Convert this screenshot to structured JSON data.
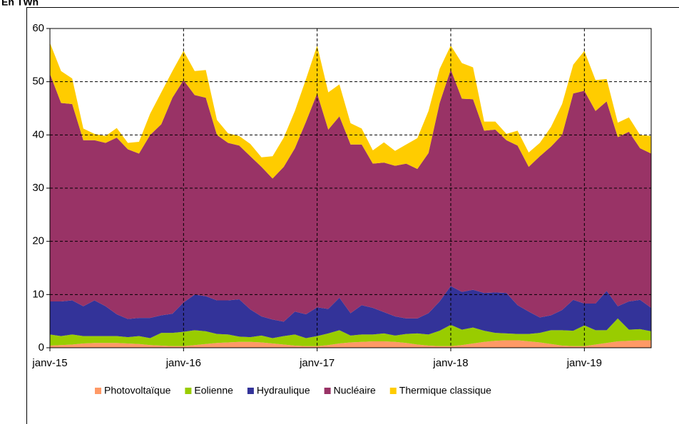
{
  "chart_data": {
    "type": "stacked-area",
    "title": "En TWh",
    "categories": [
      "janv-15",
      null,
      null,
      null,
      null,
      null,
      null,
      null,
      null,
      null,
      null,
      null,
      "janv-16",
      null,
      null,
      null,
      null,
      null,
      null,
      null,
      null,
      null,
      null,
      null,
      "janv-17",
      null,
      null,
      null,
      null,
      null,
      null,
      null,
      null,
      null,
      null,
      null,
      "janv-18",
      null,
      null,
      null,
      null,
      null,
      null,
      null,
      null,
      null,
      null,
      null,
      "janv-19",
      null,
      null,
      null,
      null,
      null,
      null
    ],
    "series": [
      {
        "name": "Photovoltaïque",
        "color": "#ff9966",
        "values": [
          0.4,
          0.5,
          0.6,
          0.8,
          0.9,
          0.9,
          0.9,
          0.8,
          0.7,
          0.5,
          0.4,
          0.3,
          0.3,
          0.5,
          0.7,
          0.9,
          1.0,
          1.1,
          1.1,
          1.0,
          0.8,
          0.6,
          0.4,
          0.3,
          0.3,
          0.5,
          0.8,
          1.0,
          1.1,
          1.2,
          1.2,
          1.1,
          0.9,
          0.6,
          0.4,
          0.3,
          0.3,
          0.5,
          0.8,
          1.1,
          1.3,
          1.4,
          1.4,
          1.2,
          1.0,
          0.7,
          0.4,
          0.3,
          0.3,
          0.6,
          0.9,
          1.2,
          1.3,
          1.4,
          1.4
        ]
      },
      {
        "name": "Eolienne",
        "color": "#99cc00",
        "values": [
          2.1,
          1.7,
          1.9,
          1.4,
          1.3,
          1.3,
          1.3,
          1.2,
          1.5,
          1.3,
          2.4,
          2.5,
          2.7,
          2.8,
          2.4,
          1.7,
          1.5,
          1.0,
          0.9,
          1.3,
          1.0,
          1.6,
          2.1,
          1.5,
          1.9,
          2.2,
          2.5,
          1.3,
          1.4,
          1.3,
          1.5,
          1.2,
          1.7,
          2.1,
          2.1,
          2.9,
          4.0,
          2.9,
          3.0,
          2.1,
          1.5,
          1.3,
          1.2,
          1.4,
          1.8,
          2.6,
          2.9,
          2.9,
          3.9,
          2.7,
          2.4,
          4.3,
          2.1,
          2.1,
          1.7
        ]
      },
      {
        "name": "Hydraulique",
        "color": "#333399",
        "values": [
          6.2,
          6.5,
          6.4,
          5.6,
          6.7,
          5.6,
          4.1,
          3.4,
          3.4,
          3.8,
          3.3,
          3.6,
          5.5,
          6.7,
          6.6,
          6.3,
          6.4,
          7.0,
          5.2,
          3.6,
          3.5,
          2.7,
          4.3,
          4.5,
          5.4,
          4.6,
          6.1,
          4.2,
          5.5,
          5.0,
          4.0,
          3.6,
          2.9,
          2.8,
          4.0,
          5.5,
          7.3,
          7.1,
          7.1,
          7.1,
          7.6,
          7.6,
          5.4,
          4.2,
          2.9,
          2.8,
          3.8,
          5.8,
          4.1,
          5.0,
          7.4,
          2.3,
          5.3,
          5.5,
          4.4
        ]
      },
      {
        "name": "Nucléaire",
        "color": "#993366",
        "values": [
          42.8,
          37.3,
          36.9,
          31.2,
          30.1,
          30.7,
          33.2,
          31.9,
          30.9,
          34.4,
          35.9,
          40.6,
          41.8,
          37.5,
          37.3,
          31.1,
          29.6,
          28.9,
          28.8,
          28.1,
          26.5,
          29.1,
          30.7,
          36.2,
          40.2,
          33.7,
          34.1,
          31.7,
          30.2,
          27.1,
          28.1,
          28.3,
          29.1,
          28.1,
          30.1,
          37.3,
          40.7,
          36.3,
          35.8,
          30.5,
          30.6,
          28.7,
          30.0,
          27.2,
          30.3,
          31.7,
          32.9,
          38.8,
          40.0,
          36.2,
          35.6,
          31.8,
          31.9,
          28.5,
          29.0
        ]
      },
      {
        "name": "Thermique classique",
        "color": "#ffcc00",
        "values": [
          5.8,
          6.0,
          4.8,
          2.2,
          1.2,
          1.3,
          1.8,
          1.2,
          2.2,
          4.0,
          6.0,
          5.0,
          5.5,
          4.5,
          5.2,
          2.8,
          1.8,
          1.8,
          2.3,
          1.8,
          4.2,
          5.5,
          7.0,
          8.0,
          9.0,
          7.0,
          6.0,
          4.0,
          3.0,
          2.5,
          3.8,
          2.8,
          3.6,
          5.8,
          7.9,
          6.4,
          4.5,
          6.7,
          6.0,
          1.7,
          1.5,
          1.2,
          2.8,
          2.7,
          2.5,
          3.7,
          5.8,
          5.4,
          7.5,
          5.8,
          4.2,
          2.7,
          2.7,
          2.5,
          3.3
        ]
      }
    ],
    "ylim": [
      0,
      60
    ],
    "yticks": [
      0,
      10,
      20,
      30,
      40,
      50,
      60
    ],
    "grid": true
  }
}
